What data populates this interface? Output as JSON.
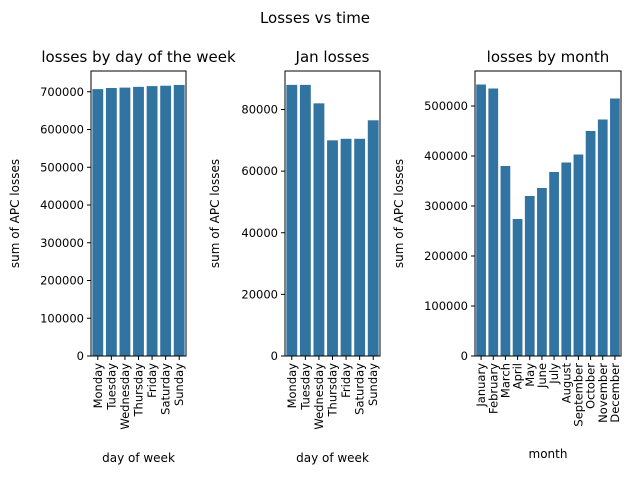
{
  "figure": {
    "suptitle": "Losses vs time"
  },
  "colors": {
    "bar": "#3174a1"
  },
  "chart_data": [
    {
      "type": "bar",
      "title": "losses by day of the week",
      "xlabel": "day of week",
      "ylabel": "sum of APC losses",
      "categories": [
        "Monday",
        "Tuesday",
        "Wednesday",
        "Thursday",
        "Friday",
        "Saturday",
        "Sunday"
      ],
      "values": [
        707000,
        710000,
        711000,
        713000,
        715000,
        716000,
        718000
      ],
      "ylim": [
        0,
        755000
      ],
      "yticks": [
        0,
        100000,
        200000,
        300000,
        400000,
        500000,
        600000,
        700000
      ],
      "grid": false
    },
    {
      "type": "bar",
      "title": "Jan losses",
      "xlabel": "day of week",
      "ylabel": "sum of APC losses",
      "categories": [
        "Monday",
        "Tuesday",
        "Wednesday",
        "Thursday",
        "Friday",
        "Saturday",
        "Sunday"
      ],
      "values": [
        88000,
        88000,
        82000,
        70000,
        70500,
        70500,
        76500
      ],
      "ylim": [
        0,
        92500
      ],
      "yticks": [
        0,
        20000,
        40000,
        60000,
        80000
      ],
      "grid": false
    },
    {
      "type": "bar",
      "title": "losses by month",
      "xlabel": "month",
      "ylabel": "sum of APC losses",
      "categories": [
        "January",
        "February",
        "March",
        "April",
        "May",
        "June",
        "July",
        "August",
        "September",
        "October",
        "November",
        "December"
      ],
      "values": [
        543000,
        535000,
        380000,
        274000,
        320000,
        336000,
        368000,
        387000,
        403000,
        450000,
        473000,
        515000
      ],
      "ylim": [
        0,
        570000
      ],
      "yticks": [
        0,
        100000,
        200000,
        300000,
        400000,
        500000
      ],
      "grid": false
    }
  ]
}
